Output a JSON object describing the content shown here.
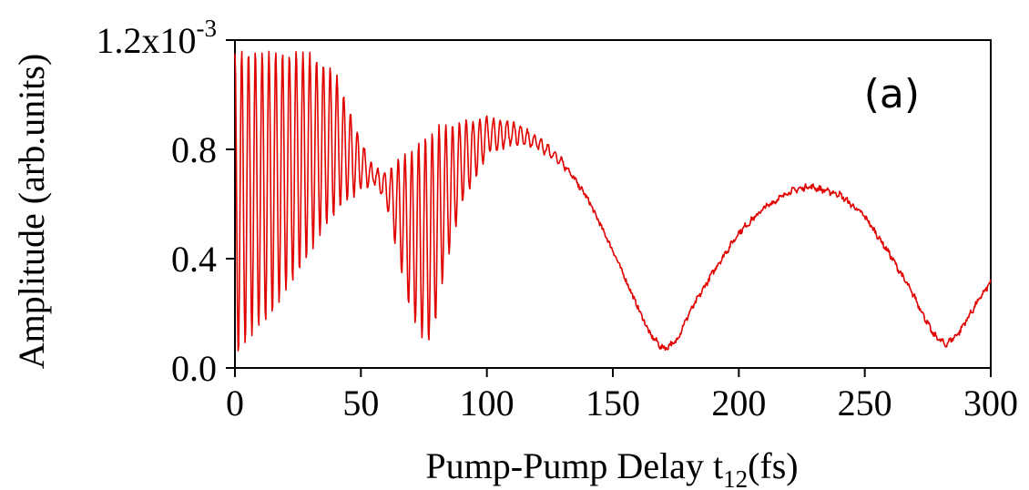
{
  "chart_data": {
    "type": "line",
    "panel_label": "(a)",
    "xlabel": {
      "main": "Pump-Pump Delay t",
      "subscript": "12",
      "suffix": "(fs)"
    },
    "ylabel": "Amplitude (arb.units)",
    "xlim": [
      0,
      300
    ],
    "ylim": [
      0,
      0.0012
    ],
    "x_ticks": [
      {
        "value": 0,
        "label": "0"
      },
      {
        "value": 50,
        "label": "50"
      },
      {
        "value": 100,
        "label": "100"
      },
      {
        "value": 150,
        "label": "150"
      },
      {
        "value": 200,
        "label": "200"
      },
      {
        "value": 250,
        "label": "250"
      },
      {
        "value": 300,
        "label": "300"
      }
    ],
    "y_ticks": [
      {
        "value": 0,
        "label": "0.0"
      },
      {
        "value": 0.0004,
        "label": "0.4"
      },
      {
        "value": 0.0008,
        "label": "0.8"
      }
    ],
    "y_top_label": {
      "value": 0.0012,
      "base": "1.2x10",
      "exponent": "-3"
    },
    "grid": false,
    "line_color": "#e00000",
    "series": [
      {
        "x_start": 0,
        "x_end": 300,
        "x_step": 0.25,
        "fast_period_fs": 2.7,
        "upper_envelope": [
          [
            0,
            0.00116
          ],
          [
            10,
            0.00116
          ],
          [
            30,
            0.00115
          ],
          [
            40,
            0.00108
          ],
          [
            48,
            0.00088
          ],
          [
            55,
            0.00073
          ],
          [
            60,
            0.00072
          ],
          [
            70,
            0.0008
          ],
          [
            80,
            0.00088
          ],
          [
            90,
            0.0009
          ],
          [
            100,
            0.00092
          ],
          [
            110,
            0.0009
          ],
          [
            120,
            0.00085
          ],
          [
            130,
            0.00077
          ],
          [
            140,
            0.00062
          ],
          [
            150,
            0.00043
          ],
          [
            160,
            0.00022
          ],
          [
            165,
            0.00012
          ],
          [
            170,
            8e-05
          ],
          [
            175,
            0.0001
          ],
          [
            180,
            0.0002
          ],
          [
            190,
            0.00036
          ],
          [
            200,
            0.0005
          ],
          [
            210,
            0.00059
          ],
          [
            220,
            0.00065
          ],
          [
            228,
            0.00067
          ],
          [
            240,
            0.00064
          ],
          [
            250,
            0.00056
          ],
          [
            260,
            0.00042
          ],
          [
            270,
            0.00026
          ],
          [
            277,
            0.00013
          ],
          [
            282,
            9e-05
          ],
          [
            287,
            0.00013
          ],
          [
            295,
            0.00025
          ],
          [
            300,
            0.00032
          ]
        ],
        "lower_envelope": [
          [
            0,
            3e-05
          ],
          [
            5,
            0.0001
          ],
          [
            15,
            0.0002
          ],
          [
            25,
            0.00035
          ],
          [
            35,
            0.0005
          ],
          [
            45,
            0.00062
          ],
          [
            55,
            0.00068
          ],
          [
            60,
            0.0006
          ],
          [
            65,
            0.0004
          ],
          [
            70,
            0.00018
          ],
          [
            75,
            0.0001
          ],
          [
            78,
            9e-05
          ],
          [
            82,
            0.0003
          ],
          [
            90,
            0.0006
          ],
          [
            100,
            0.00078
          ],
          [
            110,
            0.00082
          ],
          [
            120,
            0.0008
          ],
          [
            130,
            0.00074
          ],
          [
            140,
            0.00062
          ],
          [
            150,
            0.00043
          ],
          [
            160,
            0.00022
          ],
          [
            165,
            0.00012
          ],
          [
            170,
            6e-05
          ],
          [
            175,
            9e-05
          ],
          [
            180,
            0.00019
          ],
          [
            190,
            0.00035
          ],
          [
            200,
            0.00049
          ],
          [
            210,
            0.00058
          ],
          [
            220,
            0.00064
          ],
          [
            228,
            0.00066
          ],
          [
            240,
            0.00063
          ],
          [
            250,
            0.00055
          ],
          [
            260,
            0.00041
          ],
          [
            270,
            0.00025
          ],
          [
            277,
            0.00012
          ],
          [
            282,
            8e-05
          ],
          [
            287,
            0.00012
          ],
          [
            295,
            0.00024
          ],
          [
            300,
            0.00031
          ]
        ],
        "noise_amplitude": 9e-06
      }
    ]
  }
}
